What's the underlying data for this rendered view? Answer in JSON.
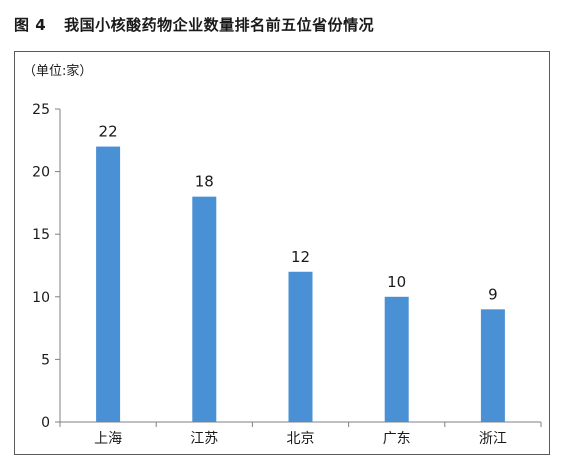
{
  "figure": {
    "number": "图 4",
    "title": "我国小核酸药物企业数量排名前五位省份情况"
  },
  "chart_data": {
    "type": "bar",
    "unit_label": "（单位:家）",
    "categories": [
      "上海",
      "江苏",
      "北京",
      "广东",
      "浙江"
    ],
    "values": [
      22,
      18,
      12,
      10,
      9
    ],
    "data_labels": [
      "22",
      "18",
      "12",
      "10",
      "9"
    ],
    "ylim": [
      0,
      25
    ],
    "yticks": [
      0,
      5,
      10,
      15,
      20,
      25
    ],
    "ytick_labels": [
      "0",
      "5",
      "10",
      "15",
      "20",
      "25"
    ],
    "grid": false,
    "legend": "none",
    "bar_color": "#4a90d4",
    "axis_color": "#808080"
  }
}
